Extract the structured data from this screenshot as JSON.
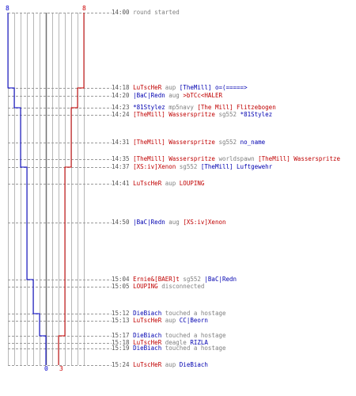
{
  "colors": {
    "red": "#cc0000",
    "blue": "#0000cc",
    "grid": "#b8b8b8",
    "dash": "#9a9a9a",
    "time": "#555555",
    "msg": "#808080"
  },
  "scores": {
    "blue_start": "8",
    "red_start": "8",
    "blue_end": "0",
    "red_end": "3"
  },
  "events": [
    {
      "time": "14:00",
      "parts": [
        {
          "t": "round started",
          "c": "grey"
        }
      ]
    },
    {
      "time": "14:18",
      "parts": [
        {
          "t": "LuTscHeR",
          "c": "red"
        },
        {
          "t": " aup ",
          "c": "grey"
        },
        {
          "t": "[TheMill] o=(=====>",
          "c": "blue"
        }
      ]
    },
    {
      "time": "14:20",
      "parts": [
        {
          "t": "|BaC|Redn",
          "c": "blue"
        },
        {
          "t": " aug ",
          "c": "grey"
        },
        {
          "t": ">bTCc<HALER",
          "c": "red"
        }
      ]
    },
    {
      "time": "14:23",
      "parts": [
        {
          "t": "*81Stylez",
          "c": "blue"
        },
        {
          "t": " mp5navy ",
          "c": "grey"
        },
        {
          "t": "[The Mill] Flitzebogen",
          "c": "red"
        }
      ]
    },
    {
      "time": "14:24",
      "parts": [
        {
          "t": "[TheMill] Wasserspritze",
          "c": "red"
        },
        {
          "t": " sg552 ",
          "c": "grey"
        },
        {
          "t": "*81Stylez",
          "c": "blue"
        }
      ]
    },
    {
      "time": "14:31",
      "parts": [
        {
          "t": "[TheMill] Wasserspritze",
          "c": "red"
        },
        {
          "t": " sg552 ",
          "c": "grey"
        },
        {
          "t": "no_name",
          "c": "blue"
        }
      ]
    },
    {
      "time": "14:35",
      "parts": [
        {
          "t": "[TheMill] Wasserspritze",
          "c": "red"
        },
        {
          "t": " worldspawn ",
          "c": "grey"
        },
        {
          "t": "[TheMill] Wasserspritze",
          "c": "red"
        }
      ]
    },
    {
      "time": "14:37",
      "parts": [
        {
          "t": "[XS:iv]Xenon",
          "c": "red"
        },
        {
          "t": " sg552 ",
          "c": "grey"
        },
        {
          "t": "[TheMill] Luftgewehr",
          "c": "blue"
        }
      ]
    },
    {
      "time": "14:41",
      "parts": [
        {
          "t": "LuTscHeR",
          "c": "red"
        },
        {
          "t": " aup ",
          "c": "grey"
        },
        {
          "t": "LOUPING",
          "c": "red"
        }
      ]
    },
    {
      "time": "14:50",
      "parts": [
        {
          "t": "|BaC|Redn",
          "c": "blue"
        },
        {
          "t": " aug ",
          "c": "grey"
        },
        {
          "t": "[XS:iv]Xenon",
          "c": "red"
        }
      ]
    },
    {
      "time": "15:04",
      "parts": [
        {
          "t": "Ernie&[BAER]t",
          "c": "red"
        },
        {
          "t": " sg552 ",
          "c": "grey"
        },
        {
          "t": "|BaC|Redn",
          "c": "blue"
        }
      ]
    },
    {
      "time": "15:05",
      "parts": [
        {
          "t": "LOUPING",
          "c": "red"
        },
        {
          "t": " disconnected",
          "c": "grey"
        }
      ]
    },
    {
      "time": "15:12",
      "parts": [
        {
          "t": "DieBiach",
          "c": "blue"
        },
        {
          "t": " touched a hostage",
          "c": "grey"
        }
      ]
    },
    {
      "time": "15:13",
      "parts": [
        {
          "t": "LuTscHeR",
          "c": "red"
        },
        {
          "t": " aup ",
          "c": "grey"
        },
        {
          "t": "CC|Beorn",
          "c": "blue"
        }
      ]
    },
    {
      "time": "15:17",
      "parts": [
        {
          "t": "DieBiach",
          "c": "blue"
        },
        {
          "t": " touched a hostage",
          "c": "grey"
        }
      ]
    },
    {
      "time": "15:18",
      "parts": [
        {
          "t": "LuTscHeR",
          "c": "red"
        },
        {
          "t": " deagle ",
          "c": "grey"
        },
        {
          "t": "RIZLA",
          "c": "blue"
        }
      ]
    },
    {
      "time": "15:19",
      "parts": [
        {
          "t": "DieBiach",
          "c": "blue"
        },
        {
          "t": " touched a hostage",
          "c": "grey"
        }
      ]
    },
    {
      "time": "15:24",
      "parts": [
        {
          "t": "LuTscHeR",
          "c": "red"
        },
        {
          "t": " aup ",
          "c": "grey"
        },
        {
          "t": "DieBiach",
          "c": "blue"
        }
      ]
    }
  ]
}
